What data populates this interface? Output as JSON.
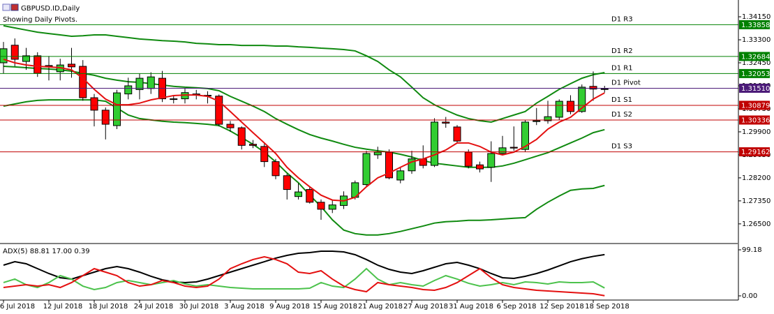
{
  "chart_data": [
    {
      "type": "candlestick",
      "title": "GBPUSD.ID,Daily",
      "subtitle": "Showing Daily Pivots.",
      "categories": [
        "6 Jul 2018",
        null,
        null,
        null,
        "12 Jul 2018",
        null,
        null,
        null,
        "18 Jul 2018",
        null,
        null,
        null,
        "24 Jul 2018",
        null,
        null,
        null,
        "30 Jul 2018",
        null,
        null,
        null,
        "3 Aug 2018",
        null,
        null,
        null,
        "9 Aug 2018",
        null,
        null,
        null,
        "15 Aug 2018",
        null,
        null,
        null,
        "21 Aug 2018",
        null,
        null,
        null,
        "27 Aug 2018",
        null,
        null,
        null,
        "31 Aug 2018",
        null,
        null,
        null,
        "6 Sep 2018",
        null,
        null,
        null,
        "12 Sep 2018",
        null,
        null,
        null,
        "18 Sep 2018",
        null
      ],
      "open": [
        1.3245,
        1.331,
        1.325,
        1.3271,
        1.3235,
        1.3212,
        1.324,
        1.3232,
        1.3116,
        1.307,
        1.3013,
        1.313,
        1.3146,
        1.315,
        1.3188,
        1.3112,
        1.3112,
        1.313,
        1.3125,
        1.3122,
        1.3018,
        1.3005,
        1.2944,
        1.2936,
        1.288,
        1.2828,
        1.2751,
        1.2777,
        1.273,
        1.2704,
        1.2718,
        1.2748,
        1.2795,
        1.2905,
        1.2915,
        1.2812,
        1.2846,
        1.289,
        1.2866,
        1.3026,
        1.3008,
        1.2915,
        1.2868,
        1.2859,
        1.291,
        1.2933,
        1.2925,
        1.3028,
        1.3031,
        1.3044,
        1.3103,
        1.3065,
        1.3158,
        1.3149
      ],
      "high": [
        1.3322,
        1.3335,
        1.33,
        1.3284,
        1.327,
        1.326,
        1.33,
        1.3255,
        1.313,
        1.308,
        1.3145,
        1.319,
        1.3205,
        1.321,
        1.3215,
        1.3125,
        1.315,
        1.3145,
        1.314,
        1.3128,
        1.303,
        1.301,
        1.296,
        1.295,
        1.289,
        1.2835,
        1.28,
        1.279,
        1.274,
        1.274,
        1.277,
        1.281,
        1.292,
        1.2935,
        1.2925,
        1.286,
        1.292,
        1.294,
        1.304,
        1.3045,
        1.3015,
        1.2925,
        1.288,
        1.2955,
        1.2975,
        1.301,
        1.3035,
        1.3078,
        1.3105,
        1.311,
        1.3125,
        1.3165,
        1.3213,
        1.316
      ],
      "low": [
        1.3206,
        1.3232,
        1.3219,
        1.3193,
        1.318,
        1.318,
        1.319,
        1.3105,
        1.301,
        1.2962,
        1.3,
        1.311,
        1.311,
        1.313,
        1.31,
        1.3095,
        1.3095,
        1.311,
        1.3095,
        1.301,
        1.299,
        1.2925,
        1.293,
        1.286,
        1.2815,
        1.274,
        1.274,
        1.2725,
        1.2665,
        1.269,
        1.2705,
        1.274,
        1.279,
        1.289,
        1.2815,
        1.28,
        1.2835,
        1.2855,
        1.286,
        1.3005,
        1.295,
        1.2855,
        1.284,
        1.2805,
        1.2905,
        1.292,
        1.2915,
        1.3015,
        1.302,
        1.3035,
        1.3055,
        1.306,
        1.3105,
        1.3135
      ],
      "close": [
        1.3297,
        1.3258,
        1.3271,
        1.3206,
        1.3232,
        1.3237,
        1.323,
        1.3116,
        1.307,
        1.3018,
        1.3134,
        1.316,
        1.3188,
        1.3193,
        1.3112,
        1.311,
        1.3135,
        1.3128,
        1.3122,
        1.3018,
        1.3005,
        1.294,
        1.294,
        1.288,
        1.2828,
        1.2777,
        1.2768,
        1.273,
        1.2704,
        1.272,
        1.2753,
        1.2802,
        1.291,
        1.2915,
        1.282,
        1.2846,
        1.289,
        1.2866,
        1.3026,
        1.3022,
        1.2956,
        1.2863,
        1.2853,
        1.291,
        1.2931,
        1.293,
        1.3026,
        1.3031,
        1.3046,
        1.3103,
        1.3065,
        1.3155,
        1.3148,
        1.3148
      ],
      "up_color": "#32cd32",
      "down_color": "#ff0000",
      "lines": [
        {
          "color": "#108a10",
          "values": [
            1.3382,
            1.3374,
            1.3366,
            1.3358,
            1.3353,
            1.3348,
            1.3343,
            1.3345,
            1.3348,
            1.3348,
            1.3343,
            1.3338,
            1.3333,
            1.333,
            1.3327,
            1.3325,
            1.3322,
            1.3317,
            1.3315,
            1.3312,
            1.3312,
            1.3309,
            1.3309,
            1.3309,
            1.3307,
            1.3307,
            1.3304,
            1.3302,
            1.3299,
            1.3297,
            1.3294,
            1.3289,
            1.3271,
            1.325,
            1.3219,
            1.3193,
            1.3155,
            1.3116,
            1.309,
            1.307,
            1.3052,
            1.3039,
            1.3031,
            1.3026,
            1.3039,
            1.3052,
            1.3065,
            1.3096,
            1.3121,
            1.3147,
            1.3168,
            1.3188,
            1.3201,
            1.3209
          ]
        },
        {
          "color": "#108a10",
          "values": [
            1.3232,
            1.323,
            1.3227,
            1.3224,
            1.3222,
            1.3219,
            1.3214,
            1.3206,
            1.3199,
            1.3188,
            1.3181,
            1.3175,
            1.3173,
            1.3168,
            1.3163,
            1.3158,
            1.3155,
            1.3153,
            1.315,
            1.3142,
            1.3121,
            1.3103,
            1.3085,
            1.3065,
            1.3039,
            1.3018,
            1.2998,
            1.298,
            1.2967,
            1.2956,
            1.2944,
            1.2933,
            1.2926,
            1.292,
            1.2915,
            1.2907,
            1.2897,
            1.2884,
            1.2874,
            1.2869,
            1.2864,
            1.2859,
            1.2859,
            1.2859,
            1.2864,
            1.2874,
            1.2887,
            1.29,
            1.2913,
            1.2931,
            1.2949,
            1.2967,
            1.2987,
            1.2998
          ]
        },
        {
          "color": "#108a10",
          "values": [
            1.3085,
            1.3093,
            1.3101,
            1.3106,
            1.3108,
            1.3108,
            1.3108,
            1.3108,
            1.3108,
            1.3103,
            1.3078,
            1.3052,
            1.3039,
            1.3034,
            1.3029,
            1.3026,
            1.3024,
            1.3021,
            1.3018,
            1.3013,
            1.2993,
            1.2969,
            1.2944,
            1.2915,
            1.2879,
            1.2838,
            1.2802,
            1.2756,
            1.2714,
            1.2665,
            1.2627,
            1.2614,
            1.2609,
            1.2609,
            1.2614,
            1.2622,
            1.2632,
            1.2642,
            1.2653,
            1.2658,
            1.266,
            1.2663,
            1.2663,
            1.2665,
            1.2668,
            1.2671,
            1.2673,
            1.2704,
            1.273,
            1.2753,
            1.2774,
            1.2779,
            1.2781,
            1.2792
          ]
        },
        {
          "color": "#e41010",
          "values": [
            1.3258,
            1.3245,
            1.3237,
            1.3232,
            1.323,
            1.3227,
            1.3219,
            1.3188,
            1.3147,
            1.3111,
            1.309,
            1.309,
            1.3096,
            1.3108,
            1.3116,
            1.3124,
            1.3126,
            1.3126,
            1.3121,
            1.3103,
            1.3065,
            1.3026,
            1.2987,
            1.2949,
            1.291,
            1.2859,
            1.282,
            1.2787,
            1.2756,
            1.2738,
            1.2735,
            1.2748,
            1.2787,
            1.282,
            1.2838,
            1.2859,
            1.2879,
            1.289,
            1.2905,
            1.2923,
            1.2949,
            1.2949,
            1.2936,
            1.2915,
            1.2905,
            1.2915,
            1.2936,
            1.2962,
            1.3,
            1.3026,
            1.3044,
            1.3078,
            1.3111,
            1.3134
          ]
        }
      ],
      "pivots": [
        {
          "name": "D1 R3",
          "value": 1.33858,
          "color": "#008000"
        },
        {
          "name": "D1 R2",
          "value": 1.32684,
          "color": "#008000"
        },
        {
          "name": "D1 R1",
          "value": 1.32053,
          "color": "#008000"
        },
        {
          "name": "D1 Pivot",
          "value": 1.3151,
          "value_label": "1.31510",
          "color": "#4b1a78"
        },
        {
          "name": "D1 S1",
          "value": 1.30879,
          "color": "#c00000"
        },
        {
          "name": "D1 S2",
          "value": 1.30336,
          "color": "#c00000"
        },
        {
          "name": "D1 S3",
          "value": 1.29162,
          "color": "#c00000"
        }
      ],
      "ylim": [
        1.258,
        1.3477
      ],
      "yticks": [
        {
          "value": 1.3415,
          "label": "1.34150"
        },
        {
          "value": 1.333,
          "label": "1.33300"
        },
        {
          "value": 1.3245,
          "label": "1.32450"
        },
        {
          "value": 1.316,
          "label": "1.31600"
        },
        {
          "value": 1.3075,
          "label": "1.30750"
        },
        {
          "value": 1.299,
          "label": "1.29900"
        },
        {
          "value": 1.2905,
          "label": "1.29050"
        },
        {
          "value": 1.282,
          "label": "1.28200"
        },
        {
          "value": 1.2735,
          "label": "1.27350"
        },
        {
          "value": 1.265,
          "label": "1.26500"
        }
      ]
    },
    {
      "type": "line",
      "title": "ADX(5) 88.81 17.00 0.39",
      "series": [
        {
          "color": "#000000",
          "values": [
            66.1,
            73.6,
            69.1,
            58.6,
            48.1,
            39.1,
            36.1,
            43.6,
            51.1,
            58.6,
            63.1,
            58.6,
            51.1,
            42.1,
            34.6,
            30.1,
            28.6,
            30.1,
            36.1,
            43.6,
            51.1,
            58.6,
            66.1,
            73.6,
            81.2,
            87.2,
            91.7,
            93.2,
            96.2,
            96.2,
            94.7,
            88.7,
            78.2,
            66.1,
            57.1,
            51.1,
            48.1,
            54.1,
            61.6,
            69.1,
            72.1,
            66.1,
            58.6,
            48.1,
            39.1,
            37.6,
            42.1,
            48.1,
            55.6,
            64.6,
            73.6,
            80.0,
            85.0,
            88.81
          ]
        },
        {
          "color": "#4cc24c",
          "values": [
            28.6,
            36.1,
            24.0,
            18.0,
            28.6,
            43.6,
            36.1,
            21.0,
            13.5,
            18.0,
            28.6,
            33.1,
            28.6,
            24.0,
            28.6,
            33.1,
            25.6,
            21.0,
            24.0,
            21.0,
            18.0,
            16.5,
            15.0,
            15.0,
            15.0,
            15.0,
            15.0,
            16.5,
            28.6,
            21.0,
            18.0,
            36.1,
            58.6,
            36.1,
            24.0,
            28.6,
            24.0,
            21.0,
            33.1,
            43.6,
            36.1,
            27.1,
            21.0,
            24.0,
            28.6,
            24.0,
            30.1,
            28.6,
            25.6,
            30.1,
            28.6,
            28.6,
            30.1,
            17.0
          ]
        },
        {
          "color": "#e41010",
          "values": [
            18.0,
            21.0,
            24.0,
            21.0,
            24.0,
            18.0,
            28.6,
            43.6,
            58.6,
            51.1,
            43.6,
            28.6,
            21.0,
            24.0,
            33.1,
            28.6,
            21.0,
            18.0,
            21.0,
            36.1,
            58.6,
            69.1,
            78.2,
            84.2,
            78.2,
            69.1,
            51.1,
            48.1,
            54.1,
            36.1,
            21.0,
            13.5,
            9.0,
            28.6,
            24.0,
            21.0,
            18.0,
            13.5,
            12.0,
            18.0,
            28.6,
            43.6,
            58.6,
            39.1,
            24.0,
            18.0,
            15.0,
            12.0,
            10.5,
            9.0,
            7.5,
            6.0,
            4.5,
            0.39
          ]
        }
      ],
      "ylim": [
        0,
        99.18
      ],
      "yticks": [
        99.18,
        {
          "value": 0,
          "label": "0.00"
        }
      ]
    }
  ]
}
